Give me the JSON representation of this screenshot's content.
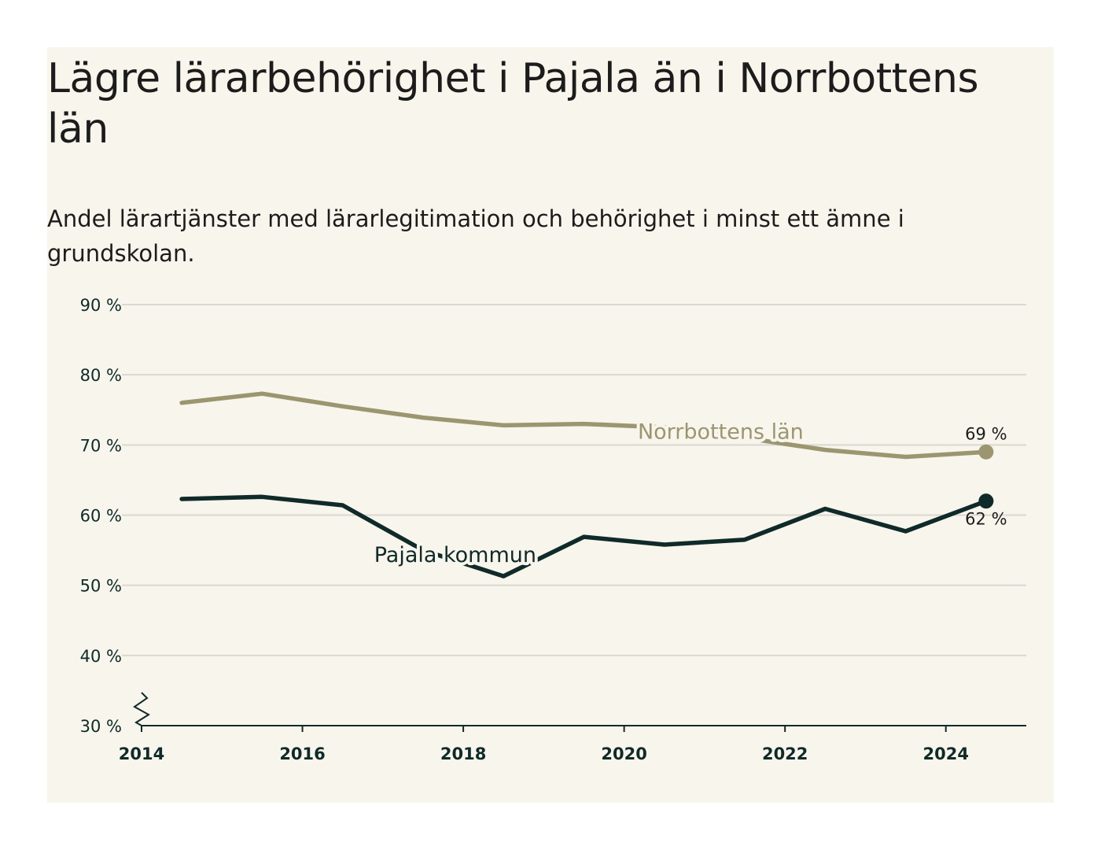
{
  "title": "Lägre lärarbehörighet i Pajala än i Norrbottens län",
  "subtitle": "Andel lärartjänster med lärarlegitimation och behörighet i minst ett ämne i grundskolan.",
  "colors": {
    "background": "#f7f5ec",
    "pajala": "#0f2a28",
    "norrbotten": "#9c9670",
    "grid": "#dad8d2",
    "axis": "#0f2a28"
  },
  "chart_data": {
    "type": "line",
    "xlim": [
      2014,
      2025
    ],
    "ylim": [
      30,
      90
    ],
    "yticks": [
      30,
      40,
      50,
      60,
      70,
      80,
      90
    ],
    "ytick_labels": [
      "30 %",
      "40 %",
      "50 %",
      "60 %",
      "70 %",
      "80 %",
      "90 %"
    ],
    "xticks": [
      2014,
      2016,
      2018,
      2020,
      2022,
      2024
    ],
    "xtick_labels": [
      "2014",
      "2016",
      "2018",
      "2020",
      "2022",
      "2024"
    ],
    "axis_break": true,
    "grid": true,
    "series": [
      {
        "name": "Norrbottens län",
        "x": [
          2014.5,
          2015.5,
          2016.5,
          2017.5,
          2018.5,
          2019.5,
          2020.5,
          2021.5,
          2022.5,
          2023.5,
          2024.5
        ],
        "values": [
          76,
          77.3,
          75.5,
          73.9,
          72.8,
          73,
          72.5,
          71,
          69.3,
          68.3,
          69
        ],
        "end_label": "69 %",
        "color": "#9c9670"
      },
      {
        "name": "Pajala kommun",
        "x": [
          2014.5,
          2015.5,
          2016.5,
          2017.5,
          2018.5,
          2019.5,
          2020.5,
          2021.5,
          2022.5,
          2023.5,
          2024.5
        ],
        "values": [
          62.3,
          62.6,
          61.4,
          55,
          51.3,
          56.9,
          55.8,
          56.5,
          60.9,
          57.7,
          62
        ],
        "end_label": "62 %",
        "color": "#0f2a28"
      }
    ]
  }
}
